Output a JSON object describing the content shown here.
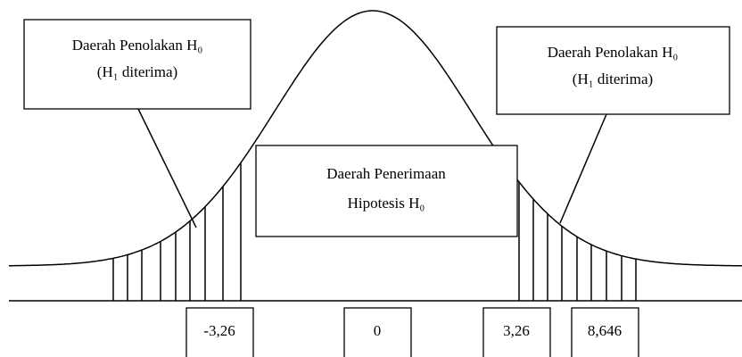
{
  "regions": {
    "left_rejection": {
      "line1": "Daerah Penolakan H₀",
      "line2": "(H₁ diterima)"
    },
    "right_rejection": {
      "line1": "Daerah Penolakan H₀",
      "line2": "(H₁ diterima)"
    },
    "acceptance": {
      "line1": "Daerah Penerimaan",
      "line2": "Hipotesis H₀"
    }
  },
  "axis_labels": [
    "-3,26",
    "0",
    "3,26",
    "8,646"
  ]
}
